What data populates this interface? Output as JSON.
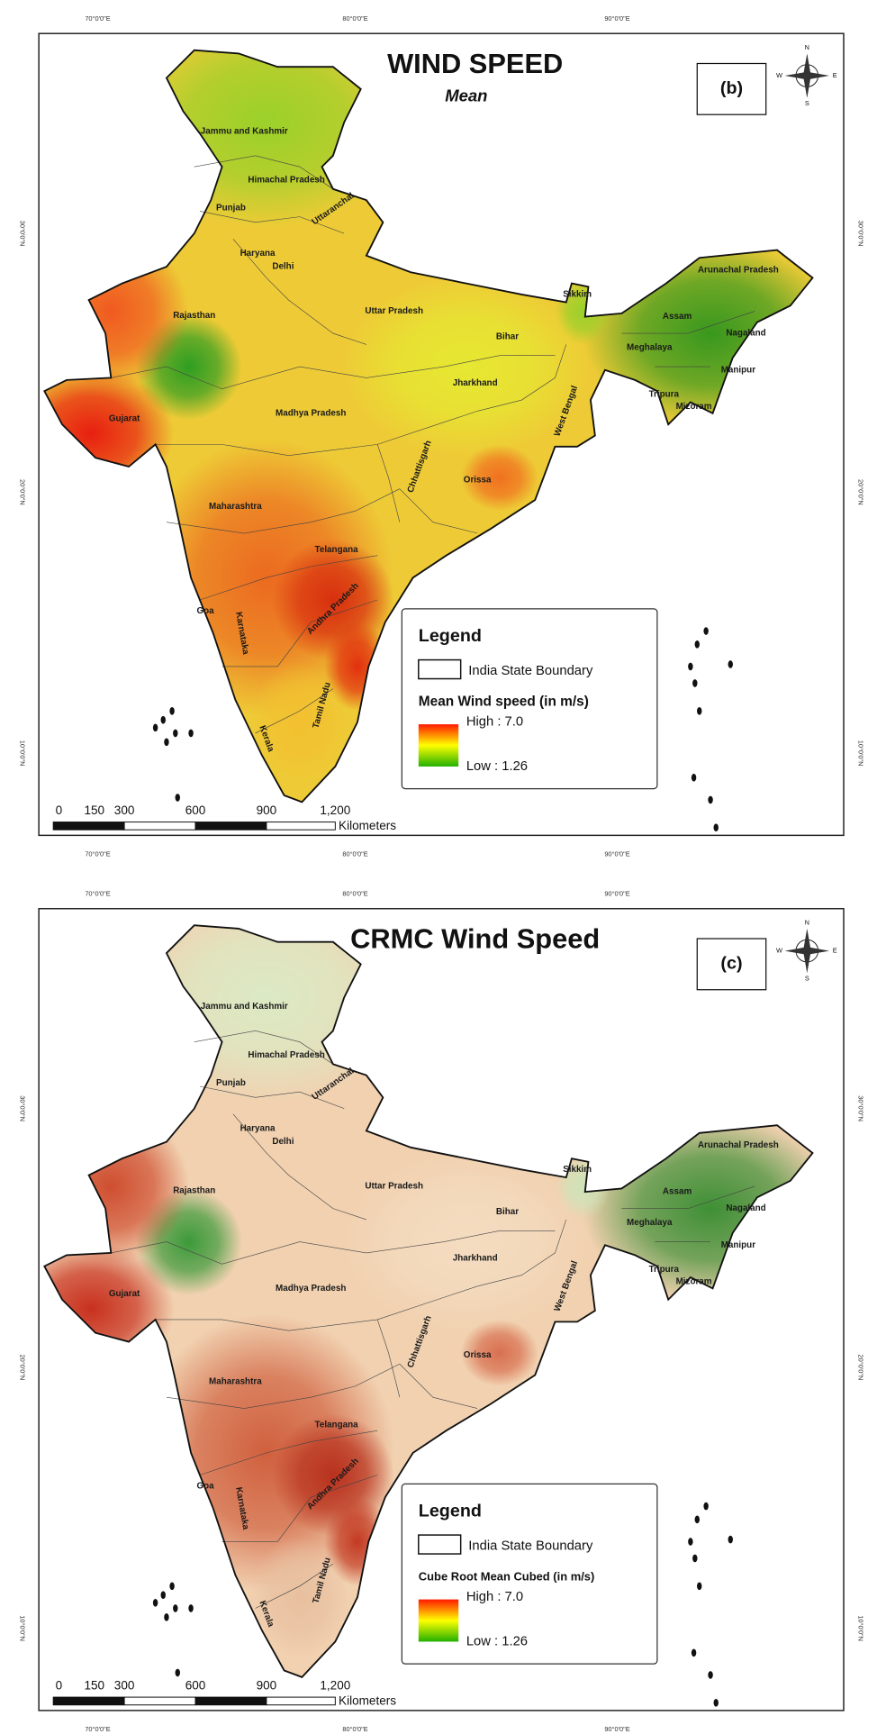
{
  "maps": [
    {
      "title": "WIND SPEED",
      "subtitle": "Mean",
      "panel": "(b)",
      "compass": [
        "N",
        "E",
        "S",
        "W"
      ],
      "graticule": {
        "longitudes": [
          "70°0'0\"E",
          "80°0'0\"E",
          "90°0'0\"E"
        ],
        "latitudes": [
          "30°0'0\"N",
          "20°0'0\"N",
          "10°0'0\"N"
        ]
      },
      "states": [
        "Jammu and Kashmir",
        "Himachal Pradesh",
        "Punjab",
        "Uttaranchal",
        "Haryana",
        "Delhi",
        "Rajasthan",
        "Uttar Pradesh",
        "Bihar",
        "Sikkim",
        "Arunachal Pradesh",
        "Assam",
        "Nagaland",
        "Meghalaya",
        "Manipur",
        "Tripura",
        "Mizoram",
        "Jharkhand",
        "West Bengal",
        "Gujarat",
        "Madhya Pradesh",
        "Chhattisgarh",
        "Orissa",
        "Maharashtra",
        "Telangana",
        "Andhra Pradesh",
        "Goa",
        "Karnataka",
        "Tamil Nadu",
        "Kerala"
      ],
      "legend": {
        "title": "Legend",
        "boundary": "India State Boundary",
        "field": "Mean Wind speed (in m/s)",
        "high": "High : 7.0",
        "low": "Low : 1.26"
      },
      "scale": {
        "ticks": [
          "0",
          "150",
          "300",
          "600",
          "900",
          "1,200"
        ],
        "unit": "Kilometers"
      }
    },
    {
      "title": "CRMC Wind Speed",
      "panel": "(c)",
      "compass": [
        "N",
        "E",
        "S",
        "W"
      ],
      "graticule": {
        "longitudes": [
          "70°0'0\"E",
          "80°0'0\"E",
          "90°0'0\"E"
        ],
        "latitudes": [
          "30°0'0\"N",
          "20°0'0\"N",
          "10°0'0\"N"
        ]
      },
      "states": [
        "Jammu and Kashmir",
        "Himachal Pradesh",
        "Punjab",
        "Uttaranchal",
        "Haryana",
        "Delhi",
        "Rajasthan",
        "Uttar Pradesh",
        "Bihar",
        "Sikkim",
        "Arunachal Pradesh",
        "Assam",
        "Nagaland",
        "Meghalaya",
        "Manipur",
        "Tripura",
        "Mizoram",
        "Jharkhand",
        "West Bengal",
        "Gujarat",
        "Madhya Pradesh",
        "Chhattisgarh",
        "Orissa",
        "Maharashtra",
        "Telangana",
        "Andhra Pradesh",
        "Goa",
        "Karnataka",
        "Tamil Nadu",
        "Kerala"
      ],
      "legend": {
        "title": "Legend",
        "boundary": "India State Boundary",
        "field": "Cube Root Mean Cubed (in m/s)",
        "high": "High : 7.0",
        "low": "Low : 1.26"
      },
      "scale": {
        "ticks": [
          "0",
          "150",
          "300",
          "600",
          "900",
          "1,200"
        ],
        "unit": "Kilometers"
      }
    }
  ]
}
